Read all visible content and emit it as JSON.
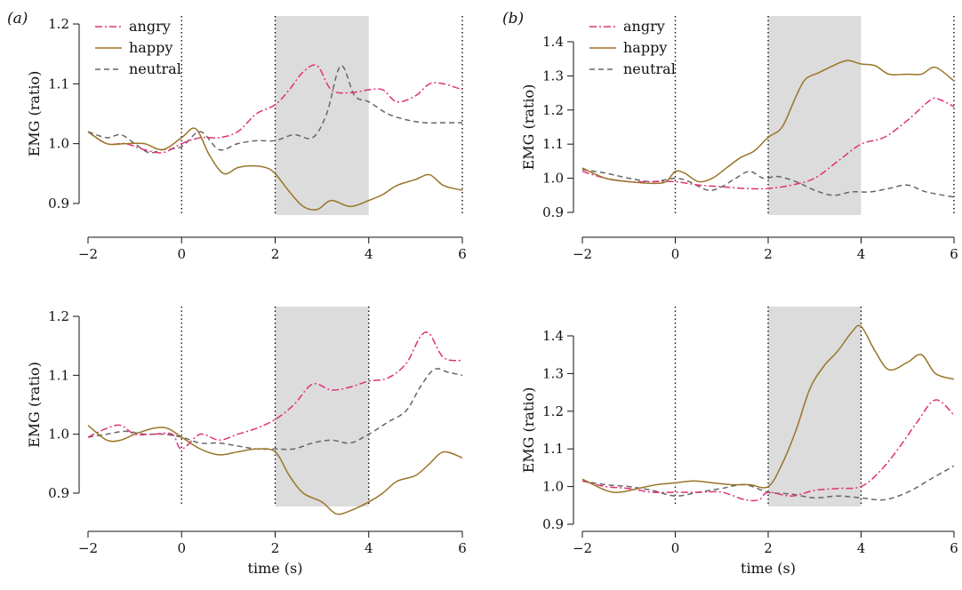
{
  "figure": {
    "panel_labels": [
      "(a)",
      "(b)"
    ],
    "colors": {
      "angry": "#e0307a",
      "happy": "#9a7427",
      "neutral": "#666666",
      "shade": "#dcdcdc"
    }
  },
  "chart_data": [
    {
      "type": "line",
      "panel": "(a)",
      "position": "top-left",
      "xlabel": "",
      "ylabel": "EMG (ratio)",
      "xlim": [
        -2,
        6
      ],
      "ylim": [
        0.86,
        1.2
      ],
      "xticks": [
        -2,
        0,
        2,
        4,
        6
      ],
      "yticks": [
        0.9,
        1.0,
        1.1,
        1.2
      ],
      "ytick_labels": [
        "0.9",
        "1.0",
        "1.1",
        "1.2"
      ],
      "shaded_interval": [
        2,
        4
      ],
      "vlines": [
        0,
        2,
        6
      ],
      "legend": "top-left",
      "series": [
        {
          "name": "angry",
          "style": "dashdot",
          "x": [
            -2,
            -1.6,
            -1.2,
            -0.8,
            -0.4,
            0,
            0.4,
            0.8,
            1.2,
            1.6,
            2,
            2.3,
            2.6,
            2.9,
            3.2,
            3.6,
            4,
            4.3,
            4.6,
            5,
            5.3,
            5.6,
            6
          ],
          "y": [
            1.02,
            1.0,
            1.0,
            0.99,
            0.985,
            1.0,
            1.01,
            1.01,
            1.02,
            1.05,
            1.065,
            1.09,
            1.12,
            1.13,
            1.09,
            1.085,
            1.09,
            1.09,
            1.07,
            1.08,
            1.1,
            1.1,
            1.09
          ]
        },
        {
          "name": "happy",
          "style": "solid",
          "x": [
            -2,
            -1.6,
            -1.2,
            -0.8,
            -0.4,
            0,
            0.3,
            0.6,
            0.9,
            1.2,
            1.5,
            1.8,
            2,
            2.3,
            2.6,
            2.9,
            3.2,
            3.6,
            4,
            4.3,
            4.6,
            5,
            5.3,
            5.6,
            6
          ],
          "y": [
            1.02,
            1.0,
            1.0,
            1.0,
            0.99,
            1.01,
            1.025,
            0.98,
            0.95,
            0.96,
            0.963,
            0.96,
            0.95,
            0.92,
            0.895,
            0.89,
            0.905,
            0.895,
            0.905,
            0.915,
            0.93,
            0.94,
            0.948,
            0.93,
            0.922
          ]
        },
        {
          "name": "neutral",
          "style": "dashed",
          "x": [
            -2,
            -1.6,
            -1.3,
            -1.0,
            -0.7,
            -0.4,
            0,
            0.4,
            0.8,
            1.2,
            1.6,
            2,
            2.4,
            2.8,
            3.1,
            3.4,
            3.7,
            4,
            4.4,
            4.8,
            5.2,
            5.6,
            6
          ],
          "y": [
            1.02,
            1.01,
            1.015,
            1.0,
            0.985,
            0.99,
            0.995,
            1.02,
            0.99,
            1.0,
            1.005,
            1.005,
            1.015,
            1.01,
            1.05,
            1.13,
            1.08,
            1.07,
            1.05,
            1.04,
            1.035,
            1.035,
            1.035
          ]
        }
      ]
    },
    {
      "type": "line",
      "panel": "(b)",
      "position": "top-right",
      "xlabel": "",
      "ylabel": "EMG (ratio)",
      "xlim": [
        -2,
        6
      ],
      "ylim": [
        0.9,
        1.43
      ],
      "xticks": [
        -2,
        0,
        2,
        4,
        6
      ],
      "yticks": [
        0.9,
        1.0,
        1.1,
        1.2,
        1.3,
        1.4
      ],
      "ytick_labels": [
        "0.9",
        "1.0",
        "1.1",
        "1.2",
        "1.3",
        "1.4"
      ],
      "shaded_interval": [
        2,
        4
      ],
      "vlines": [
        0,
        2,
        6
      ],
      "legend": "top-left",
      "series": [
        {
          "name": "angry",
          "style": "dashdot",
          "x": [
            -2,
            -1.5,
            -1,
            -0.5,
            0,
            0.5,
            1,
            1.5,
            2,
            2.5,
            3,
            3.5,
            4,
            4.5,
            5,
            5.5,
            5.7,
            6
          ],
          "y": [
            1.02,
            1.0,
            0.99,
            0.99,
            0.99,
            0.98,
            0.975,
            0.97,
            0.97,
            0.98,
            1.0,
            1.05,
            1.1,
            1.12,
            1.17,
            1.23,
            1.23,
            1.21
          ]
        },
        {
          "name": "happy",
          "style": "solid",
          "x": [
            -2,
            -1.5,
            -1,
            -0.5,
            -0.2,
            0,
            0.2,
            0.5,
            0.8,
            1.1,
            1.4,
            1.7,
            2,
            2.3,
            2.6,
            2.8,
            3.1,
            3.4,
            3.7,
            4,
            4.3,
            4.6,
            5,
            5.3,
            5.6,
            6
          ],
          "y": [
            1.03,
            1.0,
            0.99,
            0.985,
            0.99,
            1.02,
            1.015,
            0.99,
            1.0,
            1.03,
            1.06,
            1.08,
            1.12,
            1.15,
            1.24,
            1.29,
            1.31,
            1.33,
            1.345,
            1.335,
            1.33,
            1.305,
            1.305,
            1.305,
            1.325,
            1.285
          ]
        },
        {
          "name": "neutral",
          "style": "dashed",
          "x": [
            -2,
            -1.5,
            -1,
            -0.5,
            0,
            0.3,
            0.7,
            1,
            1.3,
            1.6,
            1.9,
            2.2,
            2.6,
            3,
            3.4,
            3.8,
            4.2,
            4.6,
            5,
            5.4,
            6
          ],
          "y": [
            1.025,
            1.015,
            1.0,
            0.99,
            1.0,
            0.99,
            0.965,
            0.975,
            1.0,
            1.02,
            1.0,
            1.005,
            0.99,
            0.965,
            0.95,
            0.96,
            0.96,
            0.97,
            0.98,
            0.96,
            0.945
          ]
        }
      ]
    },
    {
      "type": "line",
      "panel": "(a)",
      "position": "bottom-left",
      "xlabel": "time (s)",
      "ylabel": "EMG (ratio)",
      "xlim": [
        -2,
        6
      ],
      "ylim": [
        0.86,
        1.2
      ],
      "xticks": [
        -2,
        0,
        2,
        4,
        6
      ],
      "yticks": [
        0.9,
        1.0,
        1.1,
        1.2
      ],
      "ytick_labels": [
        "0.9",
        "1.0",
        "1.1",
        "1.2"
      ],
      "shaded_interval": [
        2,
        4
      ],
      "vlines": [
        0,
        2,
        4
      ],
      "series": [
        {
          "name": "angry",
          "style": "dashdot",
          "x": [
            -2,
            -1.6,
            -1.3,
            -1,
            -0.6,
            -0.2,
            0,
            0.4,
            0.8,
            1.2,
            1.6,
            2,
            2.4,
            2.8,
            3.2,
            3.6,
            4,
            4.4,
            4.8,
            5.1,
            5.3,
            5.6,
            6
          ],
          "y": [
            0.995,
            1.01,
            1.015,
            1.0,
            1.0,
            1.0,
            0.975,
            1.0,
            0.99,
            1.0,
            1.01,
            1.025,
            1.05,
            1.085,
            1.075,
            1.08,
            1.09,
            1.095,
            1.12,
            1.165,
            1.17,
            1.13,
            1.125
          ]
        },
        {
          "name": "happy",
          "style": "solid",
          "x": [
            -2,
            -1.6,
            -1.3,
            -1,
            -0.6,
            -0.3,
            0,
            0.4,
            0.8,
            1.2,
            1.6,
            2,
            2.3,
            2.6,
            3,
            3.3,
            3.6,
            4,
            4.3,
            4.6,
            5,
            5.3,
            5.6,
            6
          ],
          "y": [
            1.015,
            0.99,
            0.99,
            1.0,
            1.01,
            1.01,
            0.995,
            0.975,
            0.965,
            0.97,
            0.975,
            0.97,
            0.93,
            0.9,
            0.885,
            0.865,
            0.87,
            0.885,
            0.9,
            0.92,
            0.93,
            0.95,
            0.97,
            0.96
          ]
        },
        {
          "name": "neutral",
          "style": "dashed",
          "x": [
            -2,
            -1.6,
            -1.2,
            -0.8,
            -0.4,
            0,
            0.4,
            0.8,
            1.2,
            1.6,
            2,
            2.4,
            2.8,
            3.2,
            3.6,
            4,
            4.4,
            4.8,
            5.1,
            5.4,
            5.7,
            6
          ],
          "y": [
            0.995,
            1.0,
            1.005,
            1.0,
            1.0,
            0.995,
            0.985,
            0.985,
            0.98,
            0.975,
            0.975,
            0.975,
            0.985,
            0.99,
            0.985,
            1.0,
            1.02,
            1.04,
            1.08,
            1.11,
            1.105,
            1.1
          ]
        }
      ]
    },
    {
      "type": "line",
      "panel": "(b)",
      "position": "bottom-right",
      "xlabel": "time (s)",
      "ylabel": "EMG (ratio)",
      "xlim": [
        -2,
        6
      ],
      "ylim": [
        0.9,
        1.43
      ],
      "xticks": [
        -2,
        0,
        2,
        4,
        6
      ],
      "yticks": [
        0.9,
        1.0,
        1.1,
        1.2,
        1.3,
        1.4
      ],
      "ytick_labels": [
        "0.9",
        "1.0",
        "1.1",
        "1.2",
        "1.3",
        "1.4"
      ],
      "shaded_interval": [
        2,
        4
      ],
      "vlines": [
        0,
        2,
        4
      ],
      "series": [
        {
          "name": "angry",
          "style": "dashdot",
          "x": [
            -2,
            -1.5,
            -1,
            -0.5,
            0,
            0.5,
            1,
            1.5,
            1.8,
            2,
            2.5,
            3,
            3.5,
            4,
            4.4,
            4.8,
            5.2,
            5.6,
            6
          ],
          "y": [
            1.015,
            1.0,
            0.995,
            0.985,
            0.985,
            0.985,
            0.985,
            0.965,
            0.965,
            0.985,
            0.975,
            0.99,
            0.995,
            1.0,
            1.04,
            1.1,
            1.17,
            1.23,
            1.19
          ]
        },
        {
          "name": "happy",
          "style": "solid",
          "x": [
            -2,
            -1.5,
            -1.2,
            -0.8,
            -0.4,
            0,
            0.4,
            0.8,
            1.2,
            1.6,
            2,
            2.3,
            2.6,
            2.9,
            3.2,
            3.5,
            3.8,
            4,
            4.3,
            4.6,
            5,
            5.3,
            5.6,
            6
          ],
          "y": [
            1.02,
            0.99,
            0.985,
            0.995,
            1.005,
            1.01,
            1.015,
            1.01,
            1.005,
            1.005,
            1.0,
            1.06,
            1.15,
            1.26,
            1.32,
            1.36,
            1.41,
            1.425,
            1.36,
            1.31,
            1.33,
            1.35,
            1.3,
            1.285
          ]
        },
        {
          "name": "neutral",
          "style": "dashed",
          "x": [
            -2,
            -1.5,
            -1,
            -0.5,
            0,
            0.5,
            1,
            1.5,
            2,
            2.5,
            3,
            3.5,
            4,
            4.5,
            5,
            5.5,
            6
          ],
          "y": [
            1.015,
            1.005,
            1.0,
            0.99,
            0.975,
            0.985,
            0.995,
            1.005,
            0.985,
            0.98,
            0.97,
            0.975,
            0.97,
            0.965,
            0.985,
            1.02,
            1.055
          ]
        }
      ]
    }
  ]
}
